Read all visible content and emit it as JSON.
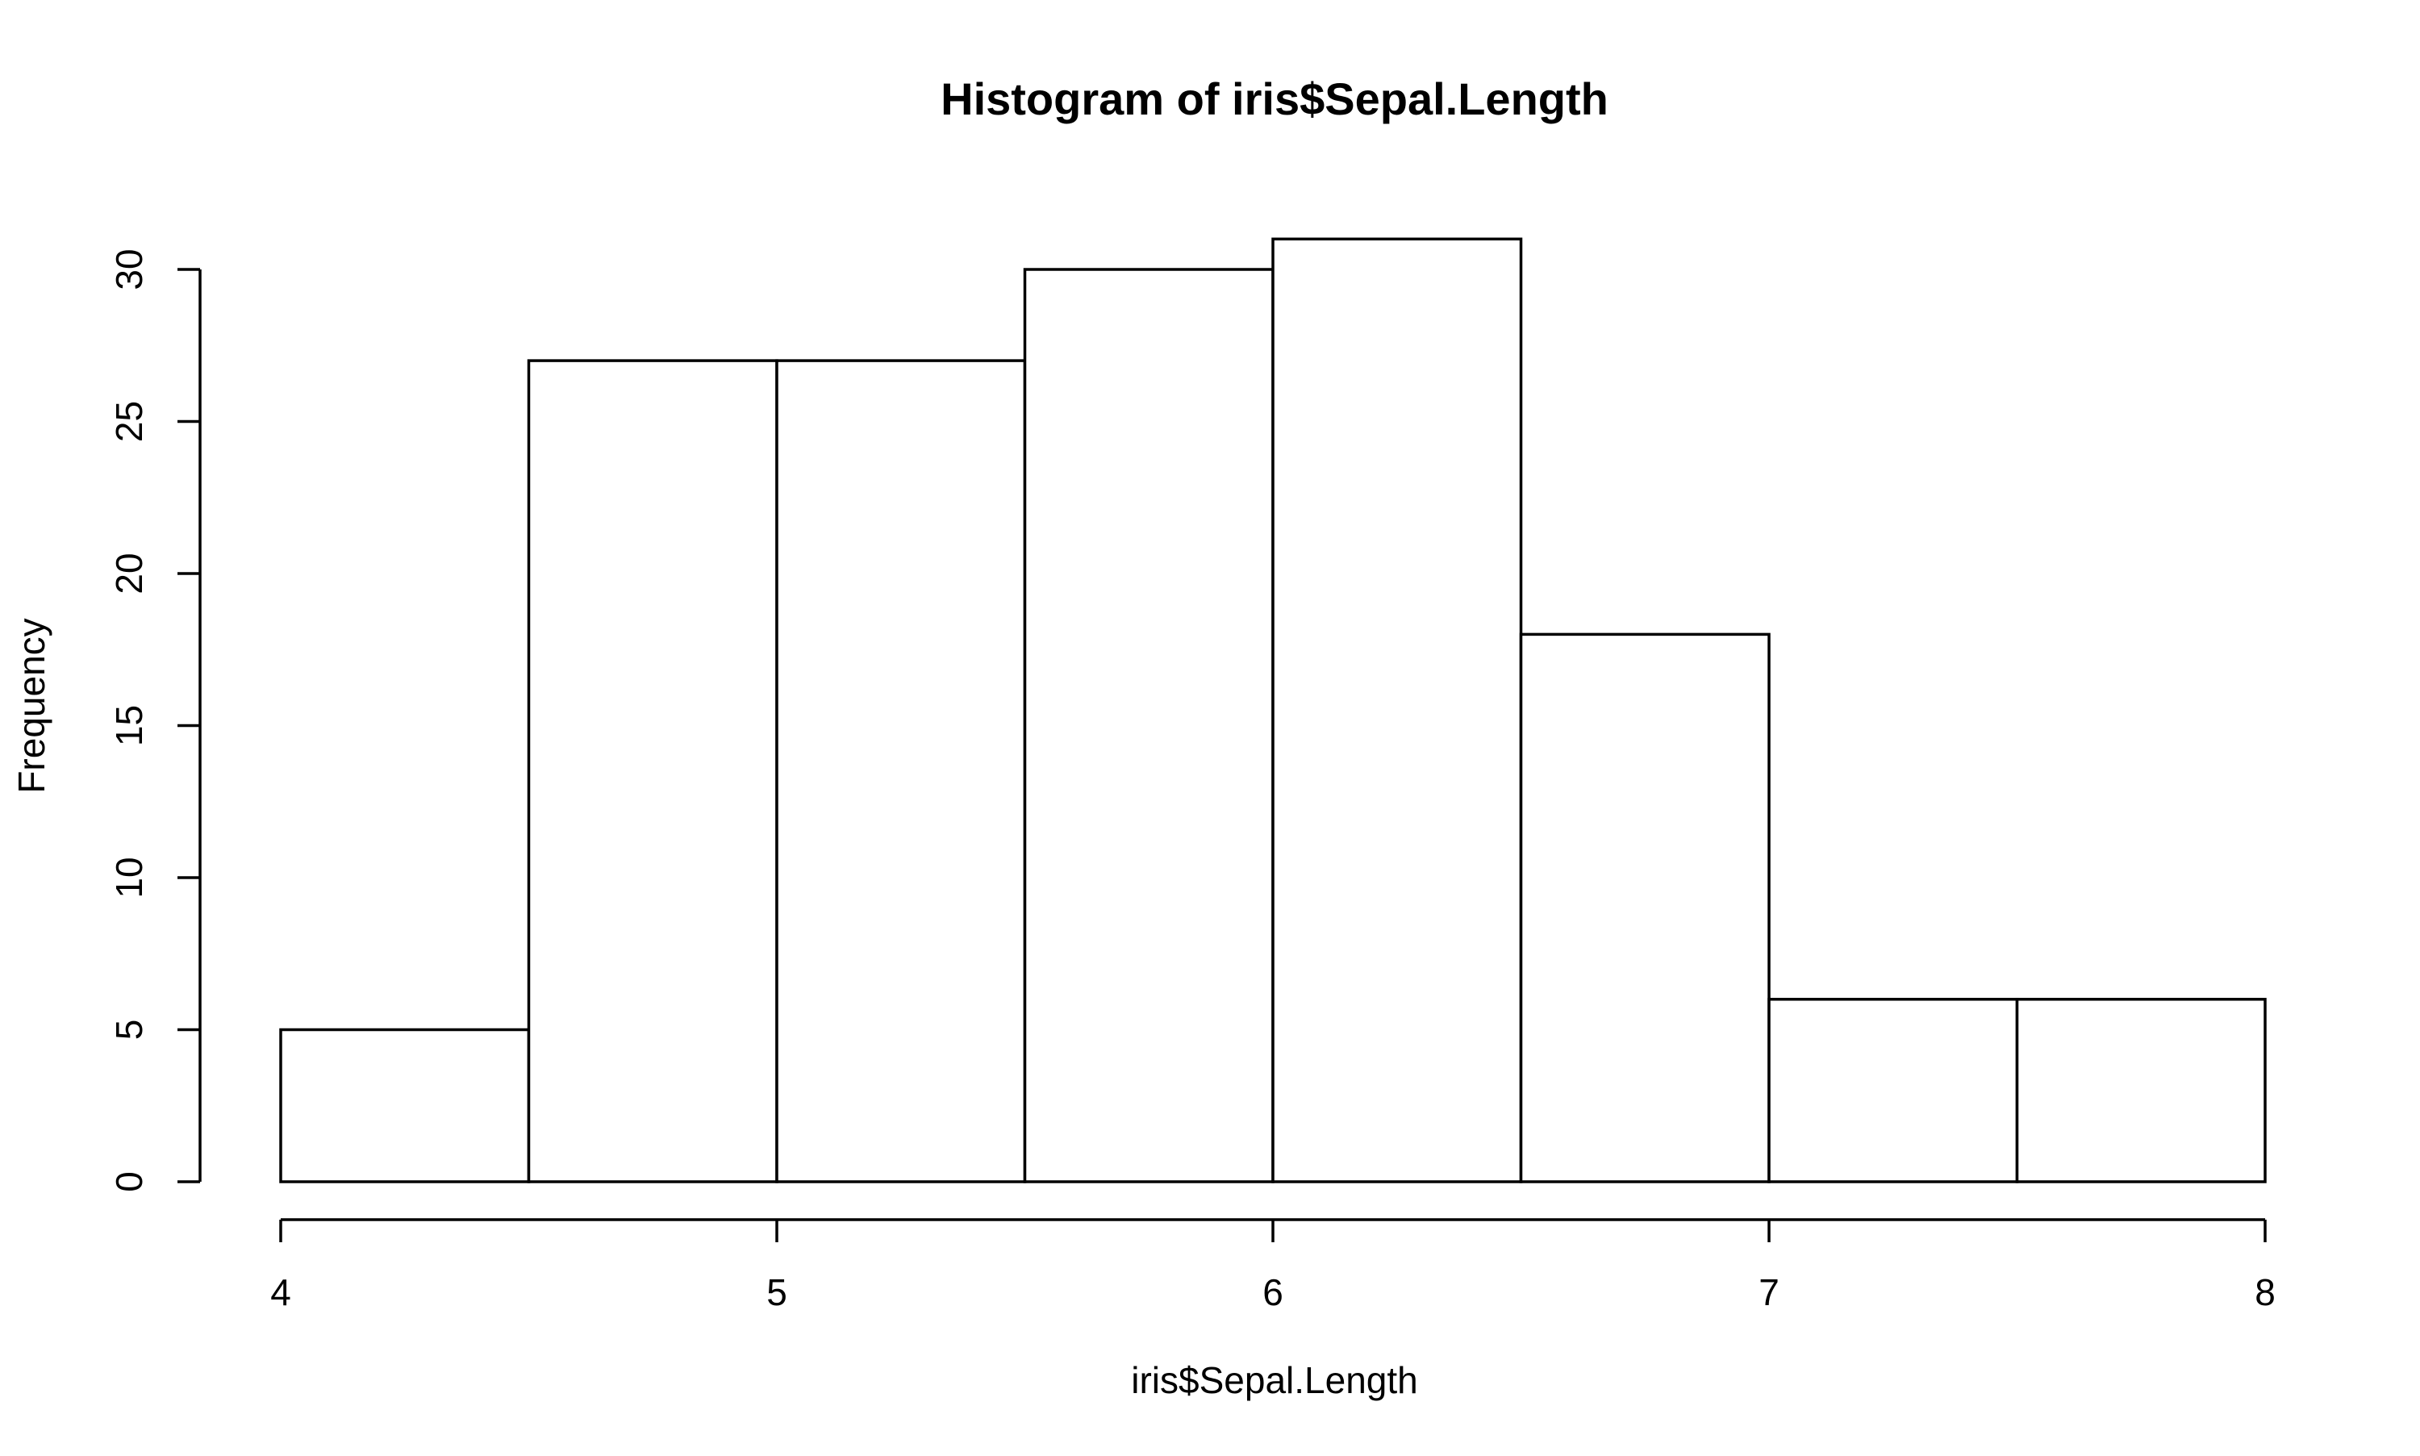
{
  "chart_data": {
    "type": "bar",
    "title": "Histogram of iris$Sepal.Length",
    "xlabel": "iris$Sepal.Length",
    "ylabel": "Frequency",
    "bins": [
      {
        "from": 4.0,
        "to": 4.5,
        "count": 5
      },
      {
        "from": 4.5,
        "to": 5.0,
        "count": 27
      },
      {
        "from": 5.0,
        "to": 5.5,
        "count": 27
      },
      {
        "from": 5.5,
        "to": 6.0,
        "count": 30
      },
      {
        "from": 6.0,
        "to": 6.5,
        "count": 31
      },
      {
        "from": 6.5,
        "to": 7.0,
        "count": 18
      },
      {
        "from": 7.0,
        "to": 7.5,
        "count": 6
      },
      {
        "from": 7.5,
        "to": 8.0,
        "count": 6
      }
    ],
    "categories": [
      "4-4.5",
      "4.5-5",
      "5-5.5",
      "5.5-6",
      "6-6.5",
      "6.5-7",
      "7-7.5",
      "7.5-8"
    ],
    "values": [
      5,
      27,
      27,
      30,
      31,
      18,
      6,
      6
    ],
    "xlim": [
      4,
      8
    ],
    "ylim": [
      0,
      30
    ],
    "x_ticks": [
      4,
      5,
      6,
      7,
      8
    ],
    "y_ticks": [
      0,
      5,
      10,
      15,
      20,
      25,
      30
    ],
    "grid": false,
    "legend": "none",
    "colors": {
      "bar_fill": "#ffffff",
      "bar_stroke": "#000000",
      "axis": "#000000"
    }
  }
}
